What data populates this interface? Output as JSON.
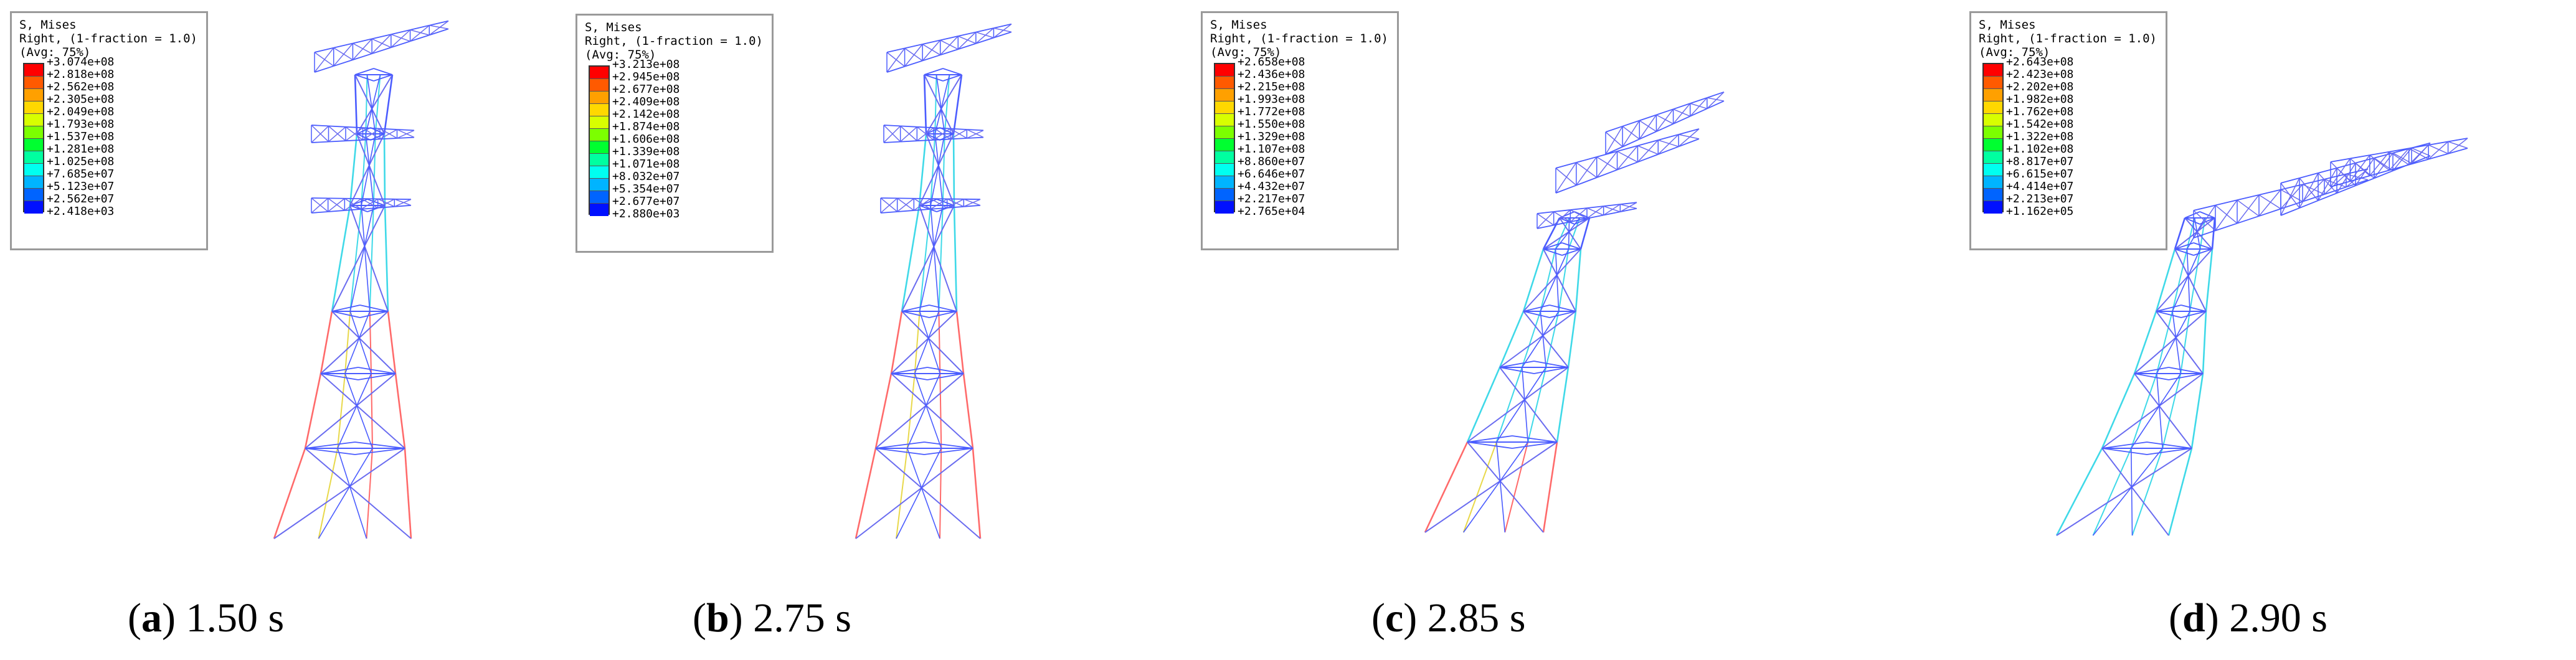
{
  "colorbar_colors": [
    "#ff0000",
    "#ff5a00",
    "#ffa000",
    "#ffd800",
    "#d8ff00",
    "#7cff00",
    "#00ff30",
    "#00ffa0",
    "#00fff0",
    "#00b4ff",
    "#0064ff",
    "#0010ff"
  ],
  "panels": [
    {
      "legend": {
        "title": "S, Mises",
        "line2": "Right, (1-fraction = 1.0)",
        "line3": "(Avg: 75%)",
        "ticks": [
          "+3.074e+08",
          "+2.818e+08",
          "+2.562e+08",
          "+2.305e+08",
          "+2.049e+08",
          "+1.793e+08",
          "+1.537e+08",
          "+1.281e+08",
          "+1.025e+08",
          "+7.685e+07",
          "+5.123e+07",
          "+2.562e+07",
          "+2.418e+03"
        ]
      },
      "caption": {
        "label": "a",
        "time": "1.50 s"
      }
    },
    {
      "legend": {
        "title": "S, Mises",
        "line2": "Right, (1-fraction = 1.0)",
        "line3": "(Avg: 75%)",
        "ticks": [
          "+3.213e+08",
          "+2.945e+08",
          "+2.677e+08",
          "+2.409e+08",
          "+2.142e+08",
          "+1.874e+08",
          "+1.606e+08",
          "+1.339e+08",
          "+1.071e+08",
          "+8.032e+07",
          "+5.354e+07",
          "+2.677e+07",
          "+2.880e+03"
        ]
      },
      "caption": {
        "label": "b",
        "time": "2.75 s"
      }
    },
    {
      "legend": {
        "title": "S, Mises",
        "line2": "Right, (1-fraction = 1.0)",
        "line3": "(Avg: 75%)",
        "ticks": [
          "+2.658e+08",
          "+2.436e+08",
          "+2.215e+08",
          "+1.993e+08",
          "+1.772e+08",
          "+1.550e+08",
          "+1.329e+08",
          "+1.107e+08",
          "+8.860e+07",
          "+6.646e+07",
          "+4.432e+07",
          "+2.217e+07",
          "+2.765e+04"
        ]
      },
      "caption": {
        "label": "c",
        "time": "2.85 s"
      }
    },
    {
      "legend": {
        "title": "S, Mises",
        "line2": "Right, (1-fraction = 1.0)",
        "line3": "(Avg: 75%)",
        "ticks": [
          "+2.643e+08",
          "+2.423e+08",
          "+2.202e+08",
          "+1.982e+08",
          "+1.762e+08",
          "+1.542e+08",
          "+1.322e+08",
          "+1.102e+08",
          "+8.817e+07",
          "+6.615e+07",
          "+4.414e+07",
          "+2.213e+07",
          "+1.162e+05"
        ]
      },
      "caption": {
        "label": "d",
        "time": "2.90 s"
      }
    }
  ]
}
